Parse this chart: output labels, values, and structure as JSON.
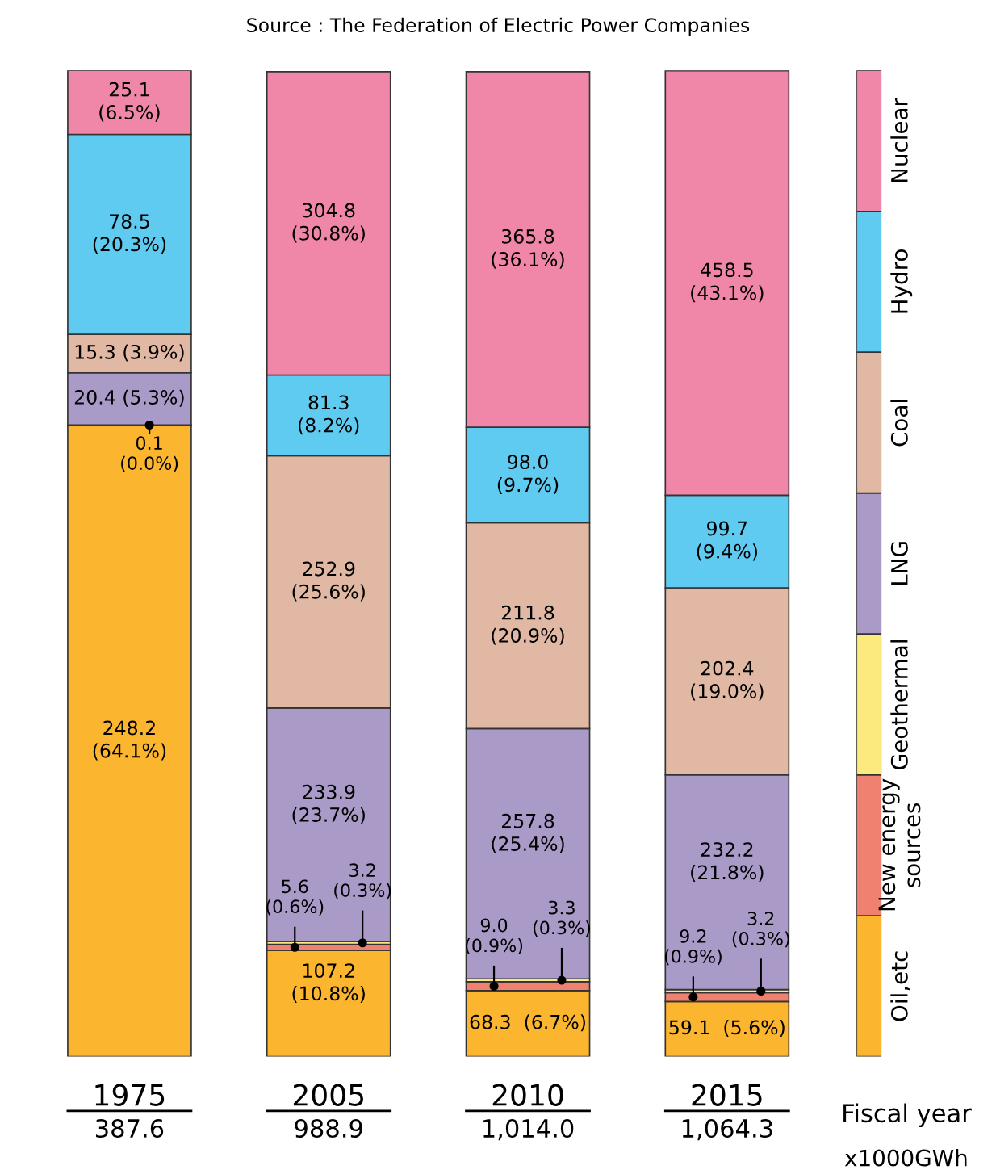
{
  "chart_data": {
    "type": "bar",
    "stacked": true,
    "legend": "right",
    "annotations": [
      "Source : The Federation of Electric Power Companies",
      "Fiscal year",
      "x1000GWh",
      "387.6",
      "988.9",
      "1,014.0",
      "1,064.3"
    ],
    "categories": [
      "1975",
      "2005",
      "2010",
      "2015"
    ],
    "series": [
      {
        "name": "Oil,etc",
        "color": "#fbb52f",
        "values": [
          64.1,
          10.8,
          6.7,
          5.6
        ],
        "value_labels": [
          "248.2\n(64.1%)",
          "107.2\n(10.8%)",
          "68.3  (6.7%)",
          "59.1  (5.6%)"
        ]
      },
      {
        "name": "New energy\nsources",
        "color": "#f08070",
        "values": [
          0.0,
          0.6,
          0.9,
          0.9
        ],
        "value_labels": [
          null,
          "5.6\n(0.6%)",
          "9.0\n(0.9%)",
          "9.2\n(0.9%)"
        ]
      },
      {
        "name": "Geothermal",
        "color": "#fdea7e",
        "values": [
          0.03,
          0.3,
          0.3,
          0.3
        ],
        "value_labels": [
          "0.1\n(0.0%)",
          "3.2\n(0.3%)",
          "3.3\n(0.3%)",
          "3.2\n(0.3%)"
        ]
      },
      {
        "name": "LNG",
        "color": "#a99ac8",
        "values": [
          5.3,
          23.7,
          25.4,
          21.8
        ],
        "value_labels": [
          "20.4 (5.3%)",
          "233.9\n(23.7%)",
          "257.8\n(25.4%)",
          "232.2\n(21.8%)"
        ]
      },
      {
        "name": "Coal",
        "color": "#e0b8a4",
        "values": [
          3.9,
          25.6,
          20.9,
          19.0
        ],
        "value_labels": [
          "15.3 (3.9%)",
          "252.9\n(25.6%)",
          "211.8\n(20.9%)",
          "202.4\n(19.0%)"
        ]
      },
      {
        "name": "Hydro",
        "color": "#5fcbf0",
        "values": [
          20.3,
          8.2,
          9.7,
          9.4
        ],
        "value_labels": [
          "78.5\n(20.3%)",
          "81.3\n(8.2%)",
          "98.0\n(9.7%)",
          "99.7\n(9.4%)"
        ]
      },
      {
        "name": "Nuclear",
        "color": "#f087a8",
        "values": [
          6.5,
          30.8,
          36.1,
          43.1
        ],
        "value_labels": [
          "25.1\n(6.5%)",
          "304.8\n(30.8%)",
          "365.8\n(36.1%)",
          "458.5\n(43.1%)"
        ]
      }
    ]
  }
}
